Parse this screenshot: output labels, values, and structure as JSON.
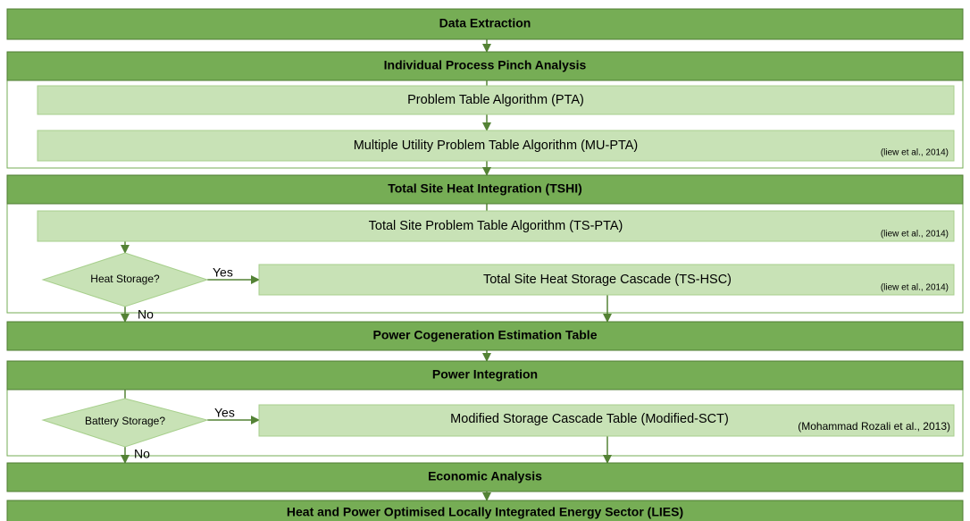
{
  "stages": [
    "Data Extraction",
    "Individual Process Pinch Analysis",
    "Total Site Heat Integration (TSHI)",
    "Power Cogeneration Estimation Table",
    "Power Integration",
    "Economic Analysis",
    "Heat and Power Optimised Locally Integrated Energy Sector (LIES)"
  ],
  "steps": [
    {
      "label": "Problem Table Algorithm (PTA)"
    },
    {
      "label": "Multiple Utility Problem Table Algorithm (MU-PTA)",
      "citation": "(liew et al., 2014)"
    },
    {
      "label": "Total Site Problem Table Algorithm (TS-PTA)",
      "citation": "(liew et al., 2014)"
    },
    {
      "label": "Total Site Heat Storage Cascade (TS-HSC)",
      "citation": "(liew et al., 2014)"
    },
    {
      "label": "Modified Storage Cascade Table (Modified-SCT)",
      "citation": "(Mohammad Rozali et al., 2013)"
    }
  ],
  "decisions": [
    {
      "label": "Heat Storage?",
      "yes": "Yes",
      "no": "No"
    },
    {
      "label": "Battery Storage?",
      "yes": "Yes",
      "no": "No"
    }
  ]
}
